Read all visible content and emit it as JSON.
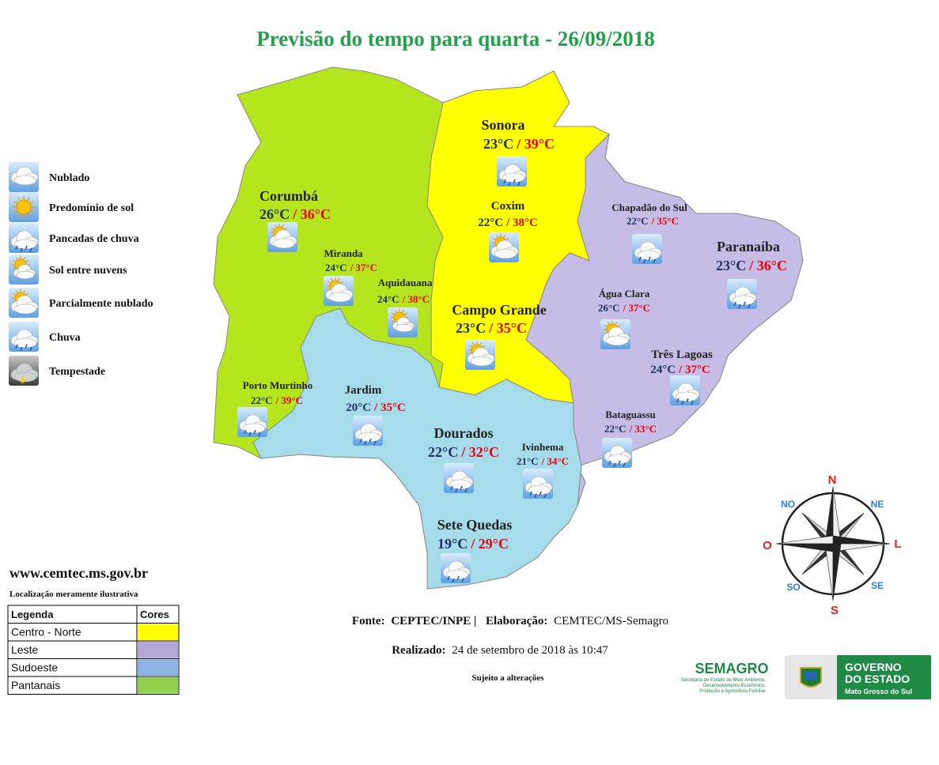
{
  "title": "Previsão do tempo para quarta - 26/09/2018",
  "icon_legend": [
    {
      "label": "Nublado",
      "icon": "nublado"
    },
    {
      "label": "Predomínio de sol",
      "icon": "sol"
    },
    {
      "label": "Pancadas de chuva",
      "icon": "pancadas"
    },
    {
      "label": "Sol entre nuvens",
      "icon": "sol-nuvens"
    },
    {
      "label": "Parcialmente nublado",
      "icon": "parcial"
    },
    {
      "label": "Chuva",
      "icon": "chuva"
    },
    {
      "label": "Tempestade",
      "icon": "tempestade"
    }
  ],
  "cities": [
    {
      "name": "Sonora",
      "min": "23°C",
      "max": "/ 39°C",
      "icon": "chuva"
    },
    {
      "name": "Coxim",
      "min": "22°C",
      "max": "/ 38°C",
      "icon": "parcial"
    },
    {
      "name": "Corumbá",
      "min": "26°C",
      "max": "/ 36°C",
      "icon": "parcial"
    },
    {
      "name": "Miranda",
      "min": "24°C",
      "max": "/ 37°C",
      "icon": "parcial"
    },
    {
      "name": "Aquidauana",
      "min": "24°C",
      "max": "/ 38°C",
      "icon": "sol-nuvens"
    },
    {
      "name": "Campo Grande",
      "min": "23°C",
      "max": "/ 35°C",
      "icon": "parcial"
    },
    {
      "name": "Chapadão do Sul",
      "min": "22°C",
      "max": "/ 35°C",
      "icon": "chuva"
    },
    {
      "name": "Paranaíba",
      "min": "23°C",
      "max": "/ 36°C",
      "icon": "chuva"
    },
    {
      "name": "Água Clara",
      "min": "26°C",
      "max": "/ 37°C",
      "icon": "parcial"
    },
    {
      "name": "Três Lagoas",
      "min": "24°C",
      "max": "/ 37°C",
      "icon": "chuva"
    },
    {
      "name": "Bataguassu",
      "min": "22°C",
      "max": "/ 33°C",
      "icon": "chuva"
    },
    {
      "name": "Porto Murtinho",
      "min": "22°C",
      "max": "/ 39°C",
      "icon": "chuva"
    },
    {
      "name": "Jardim",
      "min": "20°C",
      "max": "/ 35°C",
      "icon": "chuva"
    },
    {
      "name": "Dourados",
      "min": "22°C",
      "max": "/ 32°C",
      "icon": "chuva"
    },
    {
      "name": "Ivinhema",
      "min": "21°C",
      "max": "/ 34°C",
      "icon": "chuva"
    },
    {
      "name": "Sete Quedas",
      "min": "19°C",
      "max": "/ 29°C",
      "icon": "chuva"
    }
  ],
  "website": "www.cemtec.ms.gov.br",
  "note": "Localização meramente ilustrativa",
  "legend": {
    "header": [
      "Legenda",
      "Cores"
    ],
    "rows": [
      {
        "label": "Centro - Norte",
        "color": "#ffff00"
      },
      {
        "label": "Leste",
        "color": "#b4a7d6"
      },
      {
        "label": "Sudoeste",
        "color": "#8eb4e3"
      },
      {
        "label": "Pantanais",
        "color": "#92d050"
      }
    ]
  },
  "compass": {
    "N": "N",
    "NE": "NE",
    "L": "L",
    "SE": "SE",
    "S": "S",
    "SO": "SO",
    "O": "O",
    "NO": "NO"
  },
  "footer": {
    "source_label": "Fonte:",
    "source": "CEPTEC/INPE |",
    "elab_label": "Elaboração:",
    "elab": "CEMTEC/MS-Semagro",
    "done_label": "Realizado:",
    "done": "24 de setembro de 2018 às 10:47",
    "subject": "Sujeito a alterações"
  },
  "logos": {
    "semagro": "SEMAGRO",
    "semagro_sub": [
      "Secretaria de Estado de Meio Ambiente,",
      "Desenvolvimento Econômico,",
      "Produção e Agricultura Familiar"
    ],
    "gov": [
      "GOVERNO",
      "DO ESTADO",
      "Mato Grosso do Sul"
    ]
  }
}
